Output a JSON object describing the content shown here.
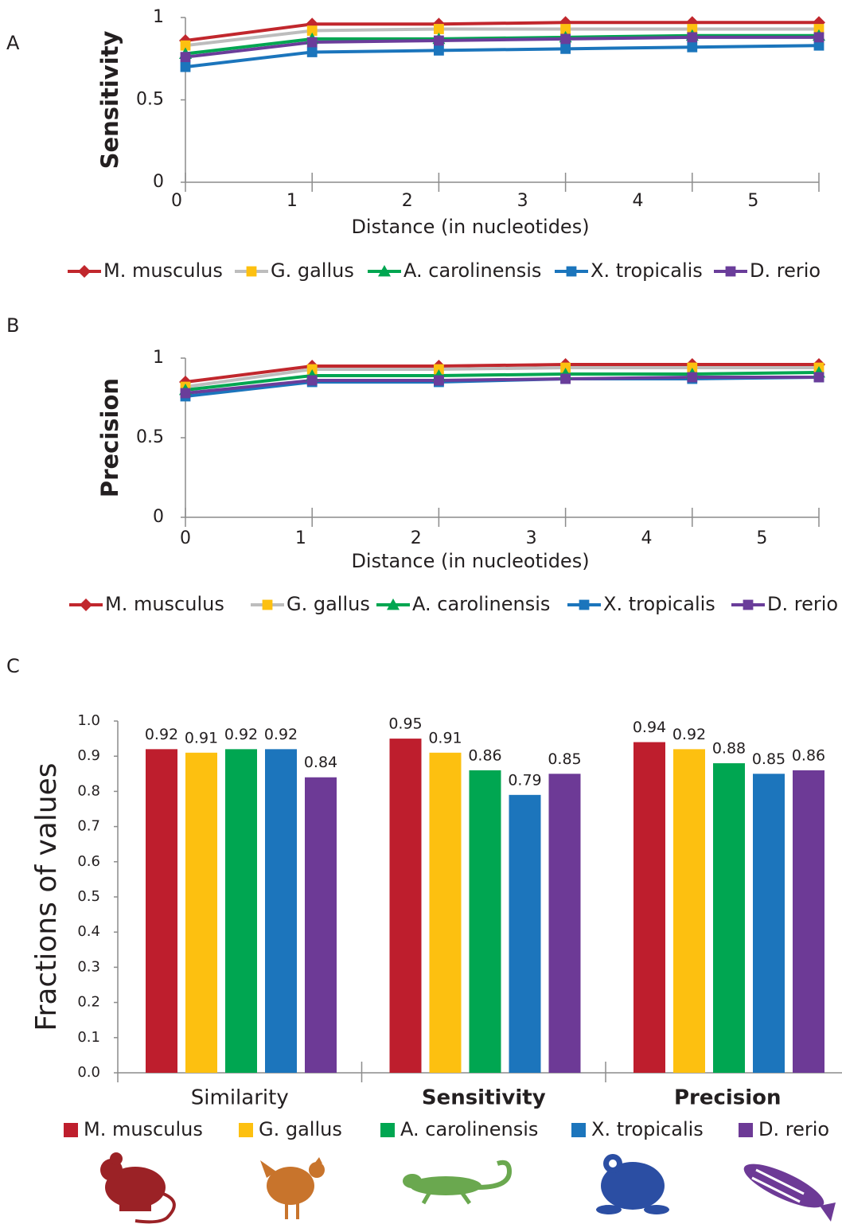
{
  "chart_data": [
    {
      "type": "line",
      "label": "A",
      "y_label": "Sensitivity",
      "x_label": "Distance (in nucleotides)",
      "categories": [
        "0",
        "1",
        "2",
        "3",
        "4",
        "5"
      ],
      "ylim": [
        0,
        1
      ],
      "yticks": [
        0,
        0.5,
        1
      ],
      "series": [
        {
          "name": "M. musculus",
          "color": "#c1272d",
          "marker": "diamond",
          "marker_color": "#c1272d",
          "values": [
            0.86,
            0.96,
            0.96,
            0.97,
            0.97,
            0.97
          ]
        },
        {
          "name": "G. gallus",
          "color": "#bdbdbd",
          "marker": "square",
          "marker_color": "#fdc010",
          "values": [
            0.83,
            0.92,
            0.93,
            0.93,
            0.93,
            0.93
          ]
        },
        {
          "name": "A. carolinensis",
          "color": "#00a651",
          "marker": "triangle",
          "marker_color": "#00a651",
          "values": [
            0.78,
            0.87,
            0.87,
            0.88,
            0.89,
            0.89
          ]
        },
        {
          "name": "X. tropicalis",
          "color": "#1b75bc",
          "marker": "square",
          "marker_color": "#1b75bc",
          "values": [
            0.7,
            0.79,
            0.8,
            0.81,
            0.82,
            0.83
          ]
        },
        {
          "name": "D. rerio",
          "color": "#6a3d9a",
          "marker": "square",
          "marker_color": "#6a3d9a",
          "values": [
            0.76,
            0.85,
            0.86,
            0.87,
            0.88,
            0.88
          ]
        }
      ]
    },
    {
      "type": "line",
      "label": "B",
      "y_label": "Precision",
      "x_label": "Distance (in nucleotides)",
      "categories": [
        "0",
        "1",
        "2",
        "3",
        "4",
        "5"
      ],
      "ylim": [
        0,
        1
      ],
      "yticks": [
        0,
        0.5,
        1
      ],
      "series": [
        {
          "name": "M. musculus",
          "color": "#c1272d",
          "marker": "diamond",
          "marker_color": "#c1272d",
          "values": [
            0.85,
            0.95,
            0.95,
            0.96,
            0.96,
            0.96
          ]
        },
        {
          "name": "G. gallus",
          "color": "#bdbdbd",
          "marker": "square",
          "marker_color": "#fdc010",
          "values": [
            0.82,
            0.93,
            0.93,
            0.94,
            0.94,
            0.94
          ]
        },
        {
          "name": "A. carolinensis",
          "color": "#00a651",
          "marker": "triangle",
          "marker_color": "#00a651",
          "values": [
            0.8,
            0.89,
            0.89,
            0.9,
            0.9,
            0.91
          ]
        },
        {
          "name": "X. tropicalis",
          "color": "#1b75bc",
          "marker": "square",
          "marker_color": "#1b75bc",
          "values": [
            0.76,
            0.85,
            0.85,
            0.87,
            0.87,
            0.88
          ]
        },
        {
          "name": "D. rerio",
          "color": "#6a3d9a",
          "marker": "square",
          "marker_color": "#6a3d9a",
          "values": [
            0.78,
            0.86,
            0.86,
            0.87,
            0.88,
            0.88
          ]
        }
      ]
    },
    {
      "type": "bar",
      "label": "C",
      "y_label": "Fractions of values",
      "categories": [
        "Similarity",
        "Sensitivity",
        "Precision"
      ],
      "ylim": [
        0,
        1
      ],
      "yticks": [
        {
          "value": 0,
          "label": "0.0"
        },
        0.1,
        0.2,
        0.3,
        0.4,
        0.5,
        0.6,
        0.7,
        0.8,
        0.9,
        {
          "value": 1,
          "label": "1.0"
        }
      ],
      "series": [
        {
          "name": "M. musculus",
          "color": "#be1e2d",
          "values": [
            0.92,
            0.95,
            0.94
          ]
        },
        {
          "name": "G. gallus",
          "color": "#fdc010",
          "values": [
            0.91,
            0.91,
            0.92
          ]
        },
        {
          "name": "A. carolinensis",
          "color": "#00a651",
          "values": [
            0.92,
            0.86,
            0.88
          ]
        },
        {
          "name": "X. tropicalis",
          "color": "#1c75bc",
          "values": [
            0.92,
            0.79,
            0.85
          ]
        },
        {
          "name": "D. rerio",
          "color": "#6d3a96",
          "values": [
            0.84,
            0.85,
            0.86
          ]
        }
      ]
    }
  ]
}
